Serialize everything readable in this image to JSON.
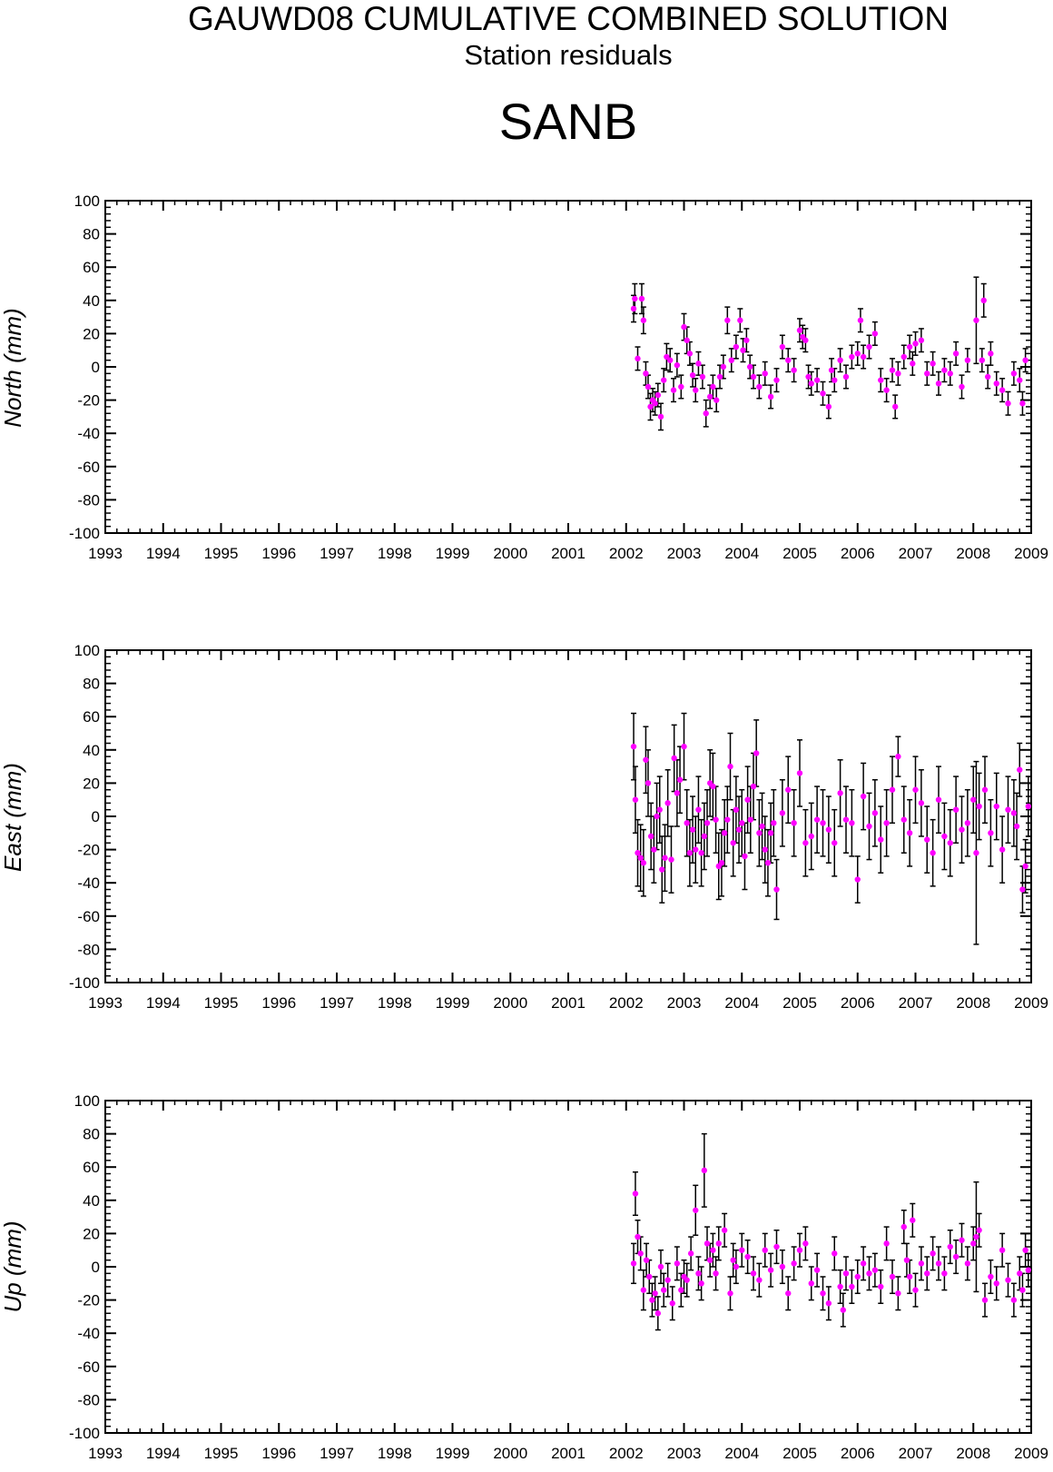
{
  "figure": {
    "title": "GAUWD08 CUMULATIVE COMBINED SOLUTION",
    "subtitle": "Station residuals",
    "station": "SANB"
  },
  "chart_data": [
    {
      "type": "scatter",
      "ylabel": "North (mm)",
      "xlim": [
        1993,
        2009
      ],
      "ylim": [
        -100,
        100
      ],
      "x_ticks": [
        "1993",
        "1994",
        "1995",
        "1996",
        "1997",
        "1998",
        "1999",
        "2000",
        "2001",
        "2002",
        "2003",
        "2004",
        "2005",
        "2006",
        "2007",
        "2008",
        "2009"
      ],
      "y_ticks": [
        "-100",
        "-80",
        "-60",
        "-40",
        "-20",
        "0",
        "20",
        "40",
        "60",
        "80",
        "100"
      ],
      "grid": false,
      "marker_color": "#ff00ff",
      "errorbar_color": "#000000",
      "series": [
        {
          "x": [
            2002.13,
            2002.15,
            2002.2,
            2002.27,
            2002.3,
            2002.34,
            2002.38,
            2002.42,
            2002.46,
            2002.5,
            2002.55,
            2002.6,
            2002.65,
            2002.7,
            2002.76,
            2002.82,
            2002.88,
            2002.95,
            2003.0,
            2003.05,
            2003.1,
            2003.15,
            2003.2,
            2003.25,
            2003.32,
            2003.38,
            2003.45,
            2003.5,
            2003.56,
            2003.62,
            2003.68,
            2003.75,
            2003.82,
            2003.9,
            2003.97,
            2004.02,
            2004.08,
            2004.14,
            2004.2,
            2004.3,
            2004.4,
            2004.5,
            2004.6,
            2004.7,
            2004.8,
            2004.9,
            2005.0,
            2005.05,
            2005.1,
            2005.15,
            2005.2,
            2005.3,
            2005.4,
            2005.5,
            2005.55,
            2005.6,
            2005.7,
            2005.8,
            2005.9,
            2006.0,
            2006.05,
            2006.1,
            2006.2,
            2006.3,
            2006.4,
            2006.5,
            2006.6,
            2006.65,
            2006.7,
            2006.8,
            2006.9,
            2006.95,
            2007.0,
            2007.1,
            2007.2,
            2007.3,
            2007.4,
            2007.5,
            2007.6,
            2007.7,
            2007.8,
            2007.9,
            2008.05,
            2008.15,
            2008.18,
            2008.25,
            2008.3,
            2008.4,
            2008.5,
            2008.6,
            2008.7,
            2008.8,
            2008.85,
            2008.9
          ],
          "y": [
            35,
            41,
            5,
            41,
            28,
            -4,
            -12,
            -24,
            -20,
            -22,
            -17,
            -30,
            -8,
            6,
            4,
            -14,
            1,
            -12,
            24,
            16,
            8,
            -5,
            -14,
            2,
            -6,
            -28,
            -18,
            -12,
            -20,
            -6,
            0,
            28,
            4,
            12,
            28,
            10,
            16,
            0,
            -6,
            -12,
            -4,
            -18,
            -8,
            12,
            4,
            -2,
            22,
            18,
            16,
            -6,
            -10,
            -8,
            -16,
            -24,
            -2,
            -8,
            4,
            -6,
            6,
            8,
            28,
            6,
            12,
            20,
            -8,
            -14,
            -2,
            -24,
            -4,
            6,
            12,
            2,
            14,
            16,
            -4,
            2,
            -10,
            -2,
            -4,
            8,
            -12,
            4,
            28,
            4,
            40,
            -6,
            8,
            -10,
            -14,
            -22,
            -4,
            -8,
            -22,
            4
          ],
          "err": [
            8,
            9,
            7,
            9,
            8,
            7,
            7,
            8,
            7,
            7,
            7,
            8,
            7,
            8,
            7,
            7,
            7,
            7,
            8,
            8,
            7,
            7,
            7,
            7,
            7,
            8,
            7,
            7,
            7,
            7,
            7,
            8,
            7,
            7,
            7,
            7,
            7,
            7,
            7,
            7,
            7,
            7,
            7,
            7,
            7,
            7,
            7,
            7,
            7,
            7,
            7,
            7,
            7,
            7,
            7,
            7,
            7,
            7,
            7,
            7,
            7,
            7,
            7,
            7,
            7,
            7,
            7,
            7,
            7,
            7,
            7,
            7,
            7,
            7,
            7,
            7,
            7,
            7,
            7,
            7,
            7,
            7,
            26,
            7,
            10,
            7,
            7,
            7,
            7,
            7,
            7,
            7,
            7,
            7
          ]
        }
      ]
    },
    {
      "type": "scatter",
      "ylabel": "East (mm)",
      "xlim": [
        1993,
        2009
      ],
      "ylim": [
        -100,
        100
      ],
      "x_ticks": [
        "1993",
        "1994",
        "1995",
        "1996",
        "1997",
        "1998",
        "1999",
        "2000",
        "2001",
        "2002",
        "2003",
        "2004",
        "2005",
        "2006",
        "2007",
        "2008",
        "2009"
      ],
      "y_ticks": [
        "-100",
        "-80",
        "-60",
        "-40",
        "-20",
        "0",
        "20",
        "40",
        "60",
        "80",
        "100"
      ],
      "grid": false,
      "marker_color": "#ff00ff",
      "errorbar_color": "#000000",
      "series": [
        {
          "x": [
            2002.13,
            2002.16,
            2002.2,
            2002.25,
            2002.3,
            2002.34,
            2002.38,
            2002.43,
            2002.48,
            2002.53,
            2002.58,
            2002.62,
            2002.67,
            2002.72,
            2002.78,
            2002.83,
            2002.88,
            2002.93,
            2003.0,
            2003.05,
            2003.1,
            2003.15,
            2003.2,
            2003.25,
            2003.3,
            2003.35,
            2003.4,
            2003.45,
            2003.5,
            2003.55,
            2003.6,
            2003.65,
            2003.7,
            2003.75,
            2003.8,
            2003.85,
            2003.9,
            2003.95,
            2004.0,
            2004.05,
            2004.1,
            2004.15,
            2004.2,
            2004.25,
            2004.3,
            2004.35,
            2004.4,
            2004.45,
            2004.5,
            2004.55,
            2004.6,
            2004.7,
            2004.8,
            2004.9,
            2005.0,
            2005.1,
            2005.2,
            2005.3,
            2005.4,
            2005.5,
            2005.6,
            2005.7,
            2005.8,
            2005.9,
            2006.0,
            2006.1,
            2006.2,
            2006.3,
            2006.4,
            2006.5,
            2006.6,
            2006.7,
            2006.8,
            2006.9,
            2007.0,
            2007.1,
            2007.2,
            2007.3,
            2007.4,
            2007.5,
            2007.6,
            2007.7,
            2007.8,
            2007.9,
            2008.0,
            2008.05,
            2008.1,
            2008.2,
            2008.3,
            2008.4,
            2008.5,
            2008.6,
            2008.7,
            2008.75,
            2008.8,
            2008.85,
            2008.9,
            2008.95
          ],
          "y": [
            42,
            10,
            -22,
            -25,
            -28,
            34,
            20,
            -12,
            -20,
            0,
            4,
            -32,
            -25,
            8,
            -26,
            35,
            14,
            22,
            42,
            -4,
            -22,
            -8,
            -20,
            4,
            -22,
            -12,
            -4,
            20,
            18,
            -2,
            -30,
            -28,
            -10,
            -2,
            30,
            -16,
            4,
            -8,
            -4,
            -24,
            10,
            -2,
            18,
            38,
            -10,
            -6,
            -20,
            -28,
            -10,
            -4,
            -44,
            2,
            16,
            -4,
            26,
            -16,
            -12,
            -2,
            -4,
            -8,
            -16,
            14,
            -2,
            -4,
            -38,
            12,
            -6,
            2,
            -14,
            -4,
            16,
            36,
            -2,
            -10,
            16,
            8,
            -14,
            -22,
            10,
            -12,
            -16,
            4,
            -8,
            -4,
            10,
            -22,
            6,
            16,
            -10,
            6,
            -20,
            4,
            2,
            -6,
            28,
            -44,
            -30,
            6
          ],
          "err": [
            20,
            20,
            20,
            20,
            20,
            20,
            20,
            20,
            20,
            20,
            20,
            20,
            20,
            20,
            20,
            20,
            20,
            20,
            20,
            20,
            20,
            20,
            20,
            20,
            20,
            20,
            20,
            20,
            20,
            20,
            20,
            20,
            20,
            20,
            20,
            20,
            20,
            20,
            20,
            20,
            20,
            20,
            20,
            20,
            20,
            20,
            20,
            20,
            18,
            20,
            18,
            20,
            20,
            20,
            20,
            20,
            20,
            20,
            20,
            20,
            20,
            20,
            20,
            20,
            14,
            20,
            20,
            20,
            20,
            20,
            20,
            12,
            20,
            20,
            20,
            20,
            20,
            20,
            20,
            20,
            20,
            20,
            20,
            20,
            20,
            55,
            20,
            20,
            20,
            20,
            20,
            20,
            20,
            20,
            16,
            14,
            16,
            18
          ]
        }
      ]
    },
    {
      "type": "scatter",
      "ylabel": "Up (mm)",
      "xlim": [
        1993,
        2009
      ],
      "ylim": [
        -100,
        100
      ],
      "x_ticks": [
        "1993",
        "1994",
        "1995",
        "1996",
        "1997",
        "1998",
        "1999",
        "2000",
        "2001",
        "2002",
        "2003",
        "2004",
        "2005",
        "2006",
        "2007",
        "2008",
        "2009"
      ],
      "y_ticks": [
        "-100",
        "-80",
        "-60",
        "-40",
        "-20",
        "0",
        "20",
        "40",
        "60",
        "80",
        "100"
      ],
      "grid": false,
      "marker_color": "#ff00ff",
      "errorbar_color": "#000000",
      "series": [
        {
          "x": [
            2002.13,
            2002.16,
            2002.2,
            2002.25,
            2002.3,
            2002.35,
            2002.4,
            2002.45,
            2002.5,
            2002.55,
            2002.6,
            2002.65,
            2002.72,
            2002.8,
            2002.88,
            2002.95,
            2003.0,
            2003.05,
            2003.12,
            2003.2,
            2003.25,
            2003.3,
            2003.35,
            2003.4,
            2003.45,
            2003.5,
            2003.55,
            2003.6,
            2003.7,
            2003.8,
            2003.85,
            2003.9,
            2004.0,
            2004.1,
            2004.2,
            2004.3,
            2004.4,
            2004.5,
            2004.6,
            2004.7,
            2004.8,
            2004.9,
            2005.0,
            2005.1,
            2005.2,
            2005.3,
            2005.4,
            2005.5,
            2005.6,
            2005.7,
            2005.75,
            2005.8,
            2005.9,
            2006.0,
            2006.1,
            2006.2,
            2006.3,
            2006.4,
            2006.5,
            2006.6,
            2006.7,
            2006.8,
            2006.85,
            2006.9,
            2006.95,
            2007.0,
            2007.1,
            2007.2,
            2007.3,
            2007.4,
            2007.5,
            2007.6,
            2007.7,
            2007.8,
            2007.9,
            2008.0,
            2008.05,
            2008.1,
            2008.2,
            2008.3,
            2008.4,
            2008.5,
            2008.6,
            2008.7,
            2008.8,
            2008.85,
            2008.9,
            2008.95
          ],
          "y": [
            2,
            44,
            18,
            8,
            -14,
            4,
            -6,
            -20,
            -16,
            -28,
            0,
            -14,
            -8,
            -22,
            2,
            -14,
            -6,
            -8,
            8,
            34,
            -4,
            -10,
            58,
            14,
            4,
            10,
            -4,
            14,
            22,
            -16,
            4,
            0,
            10,
            6,
            -4,
            -8,
            10,
            -2,
            12,
            0,
            -16,
            2,
            10,
            14,
            -10,
            -2,
            -16,
            -22,
            8,
            -12,
            -26,
            -4,
            -12,
            -6,
            2,
            -4,
            -2,
            -12,
            14,
            -6,
            -16,
            24,
            4,
            -6,
            28,
            -14,
            2,
            -4,
            8,
            2,
            -4,
            12,
            6,
            16,
            2,
            14,
            18,
            22,
            -20,
            -6,
            -10,
            10,
            -8,
            -20,
            -4,
            -14,
            10,
            -2
          ],
          "err": [
            12,
            13,
            10,
            10,
            12,
            10,
            10,
            10,
            10,
            10,
            10,
            10,
            10,
            10,
            10,
            10,
            10,
            10,
            10,
            15,
            10,
            10,
            22,
            10,
            10,
            10,
            10,
            10,
            10,
            10,
            10,
            10,
            10,
            10,
            10,
            10,
            10,
            10,
            10,
            10,
            10,
            10,
            10,
            10,
            10,
            10,
            10,
            10,
            10,
            10,
            10,
            10,
            10,
            10,
            10,
            10,
            10,
            10,
            10,
            10,
            10,
            10,
            10,
            10,
            10,
            10,
            10,
            10,
            10,
            10,
            10,
            10,
            10,
            10,
            10,
            10,
            33,
            10,
            10,
            10,
            10,
            10,
            10,
            10,
            10,
            10,
            10,
            10
          ]
        }
      ]
    }
  ]
}
